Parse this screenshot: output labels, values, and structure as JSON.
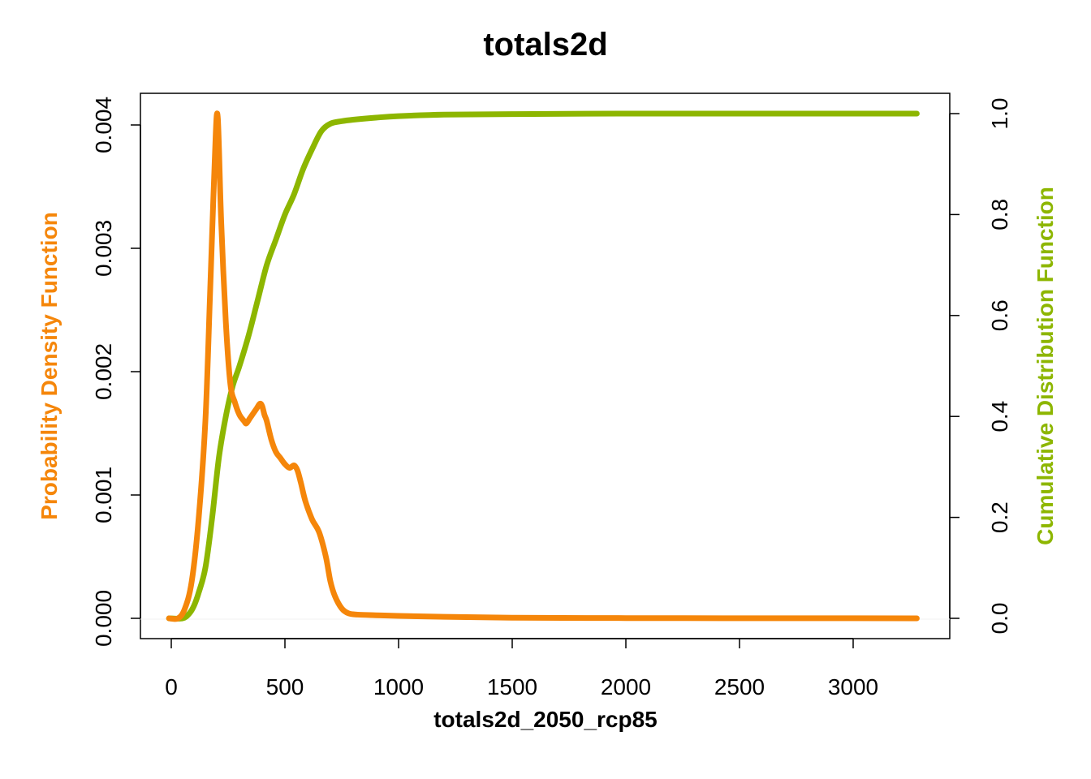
{
  "chart_data": {
    "type": "line",
    "title": "totals2d",
    "xlabel": "totals2d_2050_rcp85",
    "ylabel_left": "Probability Density Function",
    "ylabel_right": "Cumulative Distribution Function",
    "xlim": [
      0,
      3300
    ],
    "ylim_left": [
      0,
      0.004
    ],
    "ylim_right": [
      0,
      1.0
    ],
    "x_ticks": [
      "0",
      "500",
      "1000",
      "1500",
      "2000",
      "2500",
      "3000"
    ],
    "y_left_ticks": [
      "0.000",
      "0.001",
      "0.002",
      "0.003",
      "0.004"
    ],
    "y_right_ticks": [
      "0.0",
      "0.2",
      "0.4",
      "0.6",
      "0.8",
      "1.0"
    ],
    "grid": false,
    "series": [
      {
        "name": "Probability Density Function",
        "axis": "left",
        "color": "#F5860A",
        "x": [
          -10,
          30,
          60,
          90,
          120,
          150,
          170,
          185,
          195,
          200,
          205,
          210,
          220,
          240,
          260,
          280,
          300,
          320,
          330,
          345,
          360,
          375,
          390,
          400,
          410,
          420,
          440,
          460,
          480,
          500,
          520,
          540,
          555,
          570,
          590,
          620,
          650,
          680,
          700,
          720,
          750,
          780,
          820,
          900,
          1000,
          1200,
          1500,
          2000,
          2500,
          3000,
          3280
        ],
        "y": [
          0.0,
          0.0,
          8e-05,
          0.0003,
          0.0008,
          0.0016,
          0.0026,
          0.0034,
          0.0039,
          0.00408,
          0.00405,
          0.0038,
          0.0032,
          0.0024,
          0.0019,
          0.00175,
          0.00165,
          0.0016,
          0.00158,
          0.00162,
          0.00166,
          0.0017,
          0.00174,
          0.00172,
          0.00165,
          0.0016,
          0.00145,
          0.00135,
          0.0013,
          0.00125,
          0.00122,
          0.00124,
          0.0012,
          0.0011,
          0.00095,
          0.0008,
          0.0007,
          0.0005,
          0.0003,
          0.00018,
          8e-05,
          4e-05,
          3e-05,
          2.5e-05,
          2e-05,
          1.2e-05,
          5e-06,
          2e-06,
          1e-06,
          5e-07,
          0.0
        ]
      },
      {
        "name": "Cumulative Distribution Function",
        "axis": "right",
        "color": "#8DB600",
        "x": [
          -10,
          50,
          80,
          100,
          120,
          150,
          180,
          210,
          240,
          270,
          300,
          340,
          380,
          420,
          460,
          500,
          540,
          580,
          620,
          660,
          700,
          750,
          800,
          900,
          1000,
          1200,
          1500,
          2000,
          2500,
          3000,
          3280
        ],
        "y": [
          0.0,
          0.0,
          0.01,
          0.025,
          0.05,
          0.1,
          0.2,
          0.32,
          0.4,
          0.46,
          0.5,
          0.56,
          0.63,
          0.7,
          0.75,
          0.8,
          0.84,
          0.89,
          0.93,
          0.965,
          0.98,
          0.985,
          0.988,
          0.992,
          0.995,
          0.998,
          0.999,
          1.0,
          1.0,
          1.0,
          1.0
        ]
      }
    ]
  }
}
